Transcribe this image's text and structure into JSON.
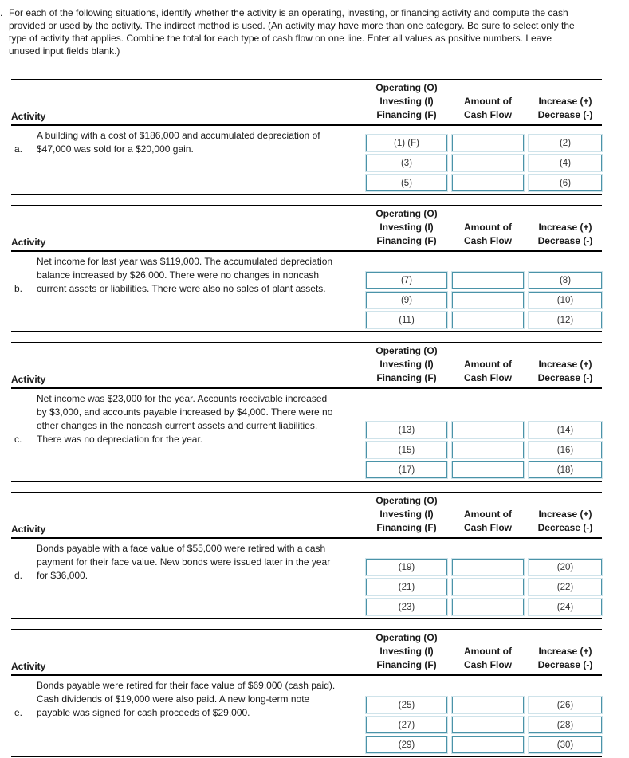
{
  "instructions": {
    "marker": ".",
    "text": "For each of the following situations, identify whether the activity is an operating, investing, or financing activity and compute the cash\nprovided or used by the activity. The indirect method is used. (An activity may have more than one category. Be sure to select only the\ntype of activity that applies. Combine the total for each type of cash flow on one line. Enter all values as positive numbers. Leave\nunused input fields blank.)"
  },
  "colors": {
    "input_border": "#4a93a8",
    "input_border_outer": "#cfe3ea",
    "divider": "#cccccc",
    "rule": "#000000"
  },
  "table": {
    "headers": {
      "activity": "Activity",
      "type_lines": [
        "Operating (O)",
        "Investing (I)",
        "Financing (F)"
      ],
      "amount_lines": [
        "Amount of",
        "Cash Flow"
      ],
      "change_lines": [
        "Increase (+)",
        "Decrease (-)"
      ]
    },
    "sections": [
      {
        "letter": "a.",
        "description": "A building with a cost of $186,000 and accumulated depreciation of\n$47,000 was sold for a $20,000 gain.",
        "rows": [
          {
            "type": "(1) (F)",
            "amount": "",
            "change": "(2)"
          },
          {
            "type": "(3)",
            "amount": "",
            "change": "(4)"
          },
          {
            "type": "(5)",
            "amount": "",
            "change": "(6)"
          }
        ]
      },
      {
        "letter": "b.",
        "description": "Net income for last year was $119,000. The accumulated depreciation\nbalance increased by $26,000. There were no changes in noncash\ncurrent assets or liabilities. There were also no sales of plant assets.",
        "rows": [
          {
            "type": "(7)",
            "amount": "",
            "change": "(8)"
          },
          {
            "type": "(9)",
            "amount": "",
            "change": "(10)"
          },
          {
            "type": "(11)",
            "amount": "",
            "change": "(12)"
          }
        ]
      },
      {
        "letter": "c.",
        "description": "Net income was $23,000 for the year. Accounts receivable increased\nby $3,000, and accounts payable increased by $4,000. There were no\nother changes in the noncash current assets and current liabilities.\nThere was no depreciation for the year.",
        "rows": [
          {
            "type": "(13)",
            "amount": "",
            "change": "(14)"
          },
          {
            "type": "(15)",
            "amount": "",
            "change": "(16)"
          },
          {
            "type": "(17)",
            "amount": "",
            "change": "(18)"
          }
        ]
      },
      {
        "letter": "d.",
        "description": "Bonds payable with a face value of $55,000 were retired with a cash\npayment for their face value. New bonds were issued later in the year\nfor $36,000.",
        "rows": [
          {
            "type": "(19)",
            "amount": "",
            "change": "(20)"
          },
          {
            "type": "(21)",
            "amount": "",
            "change": "(22)"
          },
          {
            "type": "(23)",
            "amount": "",
            "change": "(24)"
          }
        ]
      },
      {
        "letter": "e.",
        "description": "Bonds payable were retired for their face value of $69,000 (cash paid).\nCash dividends of $19,000 were also paid. A new long-term note\npayable was signed for cash proceeds of $29,000.",
        "rows": [
          {
            "type": "(25)",
            "amount": "",
            "change": "(26)"
          },
          {
            "type": "(27)",
            "amount": "",
            "change": "(28)"
          },
          {
            "type": "(29)",
            "amount": "",
            "change": "(30)"
          }
        ]
      }
    ]
  }
}
